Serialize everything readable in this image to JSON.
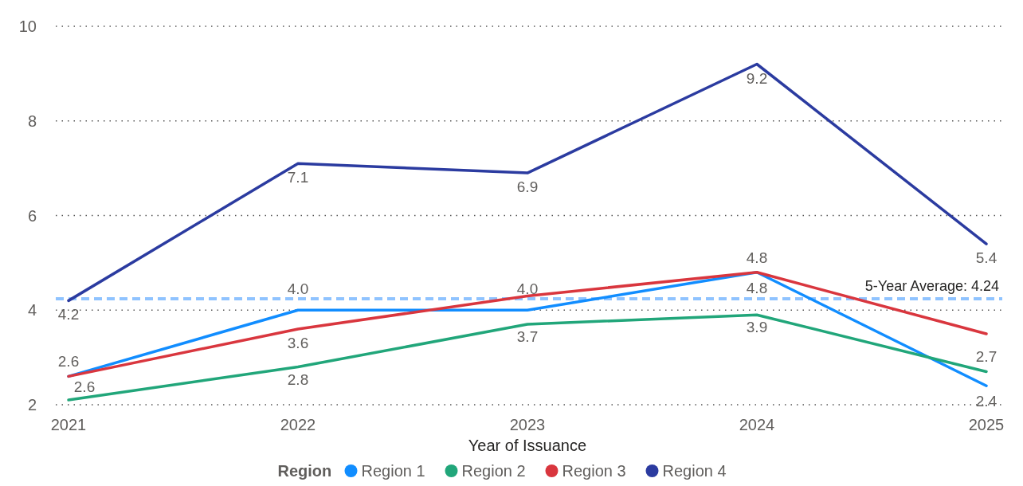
{
  "chart_data": {
    "type": "line",
    "xlabel": "Year of Issuance",
    "legend_title": "Region",
    "categories": [
      "2021",
      "2022",
      "2023",
      "2024",
      "2025"
    ],
    "series": [
      {
        "name": "Region 1",
        "color": "#118dff",
        "values": [
          2.6,
          4.0,
          4.0,
          4.8,
          2.4
        ],
        "value_labels": [
          "2.6",
          "4.0",
          "4.0",
          "4.8",
          "2.4"
        ]
      },
      {
        "name": "Region 2",
        "color": "#21a67a",
        "values": [
          2.1,
          2.8,
          3.7,
          3.9,
          2.7
        ],
        "value_labels": [
          null,
          "2.8",
          "3.7",
          "3.9",
          "2.7"
        ]
      },
      {
        "name": "Region 3",
        "color": "#d9363e",
        "values": [
          2.6,
          3.6,
          4.3,
          4.8,
          3.5
        ],
        "value_labels": [
          "2.6",
          "3.6",
          null,
          "4.8",
          null
        ]
      },
      {
        "name": "Region 4",
        "color": "#2b3ba0",
        "values": [
          4.2,
          7.1,
          6.9,
          9.2,
          5.4
        ],
        "value_labels": [
          "4.2",
          "7.1",
          "6.9",
          "9.2",
          "5.4"
        ]
      }
    ],
    "ylim": [
      2,
      10
    ],
    "yticks": [
      2,
      4,
      6,
      8,
      10
    ],
    "grid": "y",
    "legend": "bottom",
    "marker": "none",
    "line_style": "solid",
    "ref_lines": [
      {
        "axis": "y",
        "value": 4.24,
        "label": "5-Year Average: 4.24",
        "color": "#8fc3ff",
        "line_style": "dashed"
      }
    ]
  }
}
